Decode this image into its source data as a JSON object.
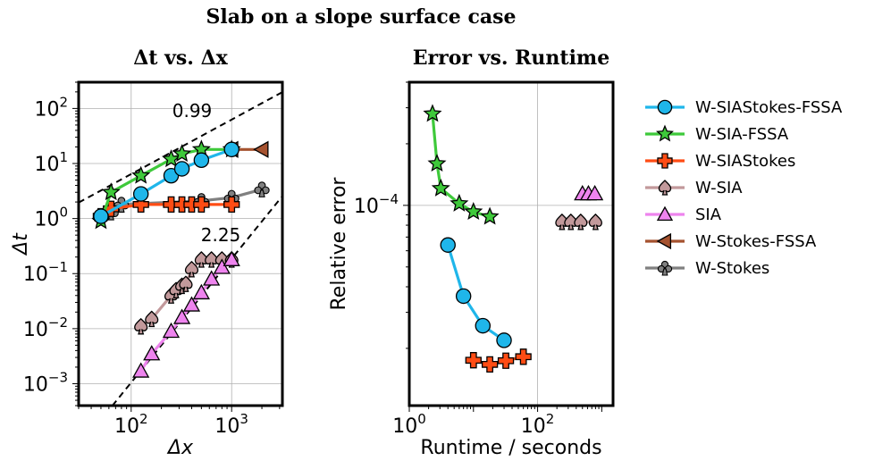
{
  "figure": {
    "suptitle": "Slab on a slope surface case"
  },
  "legend": {
    "placement": "right",
    "entries": [
      {
        "label": "W-SIAStokes-FSSA",
        "color": "#1fb6ea",
        "marker": "circle"
      },
      {
        "label": "W-SIA-FSSA",
        "color": "#3ec93a",
        "marker": "star"
      },
      {
        "label": "W-SIAStokes",
        "color": "#ff4c14",
        "marker": "plus"
      },
      {
        "label": "W-SIA",
        "color": "#c2999b",
        "marker": "spade"
      },
      {
        "label": "SIA",
        "color": "#ee84ee",
        "marker": "triangle-up"
      },
      {
        "label": "W-Stokes-FSSA",
        "color": "#a5522f",
        "marker": "triangle-left"
      },
      {
        "label": "W-Stokes",
        "color": "#808080",
        "marker": "club"
      }
    ]
  },
  "chart_data": [
    {
      "type": "line",
      "title": "Δt vs. Δx",
      "xlabel": "Δx",
      "ylabel": "Δt",
      "xscale": "log",
      "yscale": "log",
      "xlim": [
        30,
        3200
      ],
      "ylim": [
        0.0004,
        300
      ],
      "xticks": [
        {
          "value": 100,
          "base": "10",
          "exp": "2"
        },
        {
          "value": 1000,
          "base": "10",
          "exp": "3"
        }
      ],
      "yticks": [
        {
          "value": 0.001,
          "base": "10",
          "exp": "−3"
        },
        {
          "value": 0.01,
          "base": "10",
          "exp": "−2"
        },
        {
          "value": 0.1,
          "base": "10",
          "exp": "−1"
        },
        {
          "value": 1,
          "base": "10",
          "exp": "0"
        },
        {
          "value": 10,
          "base": "10",
          "exp": "1"
        },
        {
          "value": 100,
          "base": "10",
          "exp": "2"
        }
      ],
      "grid": true,
      "reference_lines": [
        {
          "label": "0.99",
          "slope": 0.99,
          "x0": 30,
          "y0": 1.95
        },
        {
          "label": "2.25",
          "slope": 2.25,
          "x0": 200,
          "y0": 0.005
        }
      ],
      "series": [
        {
          "name": "W-Stokes",
          "x": [
            50,
            63,
            80,
            500,
            1000,
            2000
          ],
          "y": [
            1.05,
            1.3,
            1.8,
            2.1,
            2.4,
            3.4
          ]
        },
        {
          "name": "W-Stokes-FSSA",
          "x": [
            1000,
            2000
          ],
          "y": [
            18,
            18
          ]
        },
        {
          "name": "W-SIA",
          "x": [
            125,
            160,
            250,
            280,
            320,
            350,
            400,
            500,
            630,
            800,
            1000
          ],
          "y": [
            0.011,
            0.015,
            0.04,
            0.05,
            0.06,
            0.065,
            0.12,
            0.18,
            0.18,
            0.18,
            0.18
          ]
        },
        {
          "name": "SIA",
          "x": [
            125,
            160,
            250,
            320,
            400,
            500,
            630,
            800,
            1000
          ],
          "y": [
            0.0017,
            0.0035,
            0.009,
            0.016,
            0.027,
            0.045,
            0.08,
            0.13,
            0.18
          ]
        },
        {
          "name": "W-SIAStokes",
          "x": [
            50,
            63,
            125,
            250,
            320,
            400,
            500,
            1000
          ],
          "y": [
            1.1,
            1.5,
            1.8,
            1.8,
            1.8,
            1.8,
            1.8,
            1.8
          ]
        },
        {
          "name": "W-SIA-FSSA",
          "x": [
            50,
            63,
            125,
            250,
            320,
            500,
            1000
          ],
          "y": [
            0.9,
            3.0,
            6.0,
            12,
            15,
            18,
            18
          ]
        },
        {
          "name": "W-SIAStokes-FSSA",
          "x": [
            50,
            125,
            250,
            320,
            500,
            1000
          ],
          "y": [
            1.1,
            2.8,
            6.0,
            8.0,
            11.5,
            18
          ]
        }
      ]
    },
    {
      "type": "line",
      "title": "Error vs. Runtime",
      "xlabel": "Runtime / seconds",
      "ylabel": "Relative error",
      "xscale": "log",
      "yscale": "log",
      "xlim": [
        1,
        1500
      ],
      "ylim": [
        1.05e-05,
        0.0004
      ],
      "xticks": [
        {
          "value": 1,
          "base": "10",
          "exp": "0"
        },
        {
          "value": 100,
          "base": "10",
          "exp": "2"
        }
      ],
      "yticks": [
        {
          "value": 0.0001,
          "base": "10",
          "exp": "−4"
        }
      ],
      "grid": true,
      "series": [
        {
          "name": "W-SIA-FSSA",
          "x": [
            2.3,
            2.7,
            3.1,
            6,
            10,
            18
          ],
          "y": [
            0.00028,
            0.00016,
            0.000121,
            0.000102,
            9.3e-05,
            8.8e-05
          ]
        },
        {
          "name": "W-SIAStokes-FSSA",
          "x": [
            4,
            7,
            14,
            30
          ],
          "y": [
            6.4e-05,
            3.6e-05,
            2.58e-05,
            2.19e-05
          ]
        },
        {
          "name": "W-SIAStokes",
          "x": [
            10,
            18,
            32,
            60
          ],
          "y": [
            1.75e-05,
            1.67e-05,
            1.74e-05,
            1.82e-05
          ]
        },
        {
          "name": "W-SIA",
          "x": [
            240,
            330,
            470,
            800
          ],
          "y": [
            8.3e-05,
            8.3e-05,
            8.3e-05,
            8.3e-05
          ]
        },
        {
          "name": "SIA",
          "x": [
            500,
            620,
            780
          ],
          "y": [
            0.000114,
            0.000114,
            0.000114
          ]
        }
      ]
    }
  ]
}
